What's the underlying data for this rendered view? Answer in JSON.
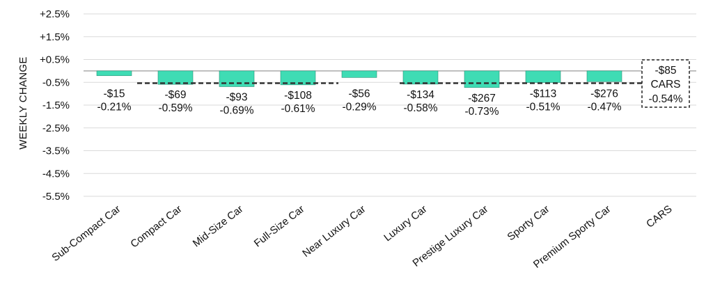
{
  "chart_data": {
    "type": "bar",
    "ylabel": "WEEKLY CHANGE",
    "xlabel": "",
    "ylim": [
      -5.5,
      2.5
    ],
    "ytick_values": [
      2.5,
      1.5,
      0.5,
      -0.5,
      -1.5,
      -2.5,
      -3.5,
      -4.5,
      -5.5
    ],
    "ytick_labels": [
      "+2.5%",
      "+1.5%",
      "+0.5%",
      "-0.5%",
      "-1.5%",
      "-2.5%",
      "-3.5%",
      "-4.5%",
      "-5.5%"
    ],
    "categories": [
      "Sub-Compact Car",
      "Compact Car",
      "Mid-Size Car",
      "Full-Size Car",
      "Near Luxury Car",
      "Luxury Car",
      "Prestige Luxury Car",
      "Sporty Car",
      "Premium Sporty Car",
      "CARS"
    ],
    "values": [
      -0.21,
      -0.59,
      -0.69,
      -0.61,
      -0.29,
      -0.58,
      -0.73,
      -0.51,
      -0.47,
      -0.54
    ],
    "dollar_labels": [
      "-$15",
      "-$69",
      "-$93",
      "-$108",
      "-$56",
      "-$134",
      "-$267",
      "-$113",
      "-$276",
      "-$85"
    ],
    "pct_labels": [
      "-0.21%",
      "-0.59%",
      "-0.69%",
      "-0.61%",
      "-0.29%",
      "-0.58%",
      "-0.73%",
      "-0.51%",
      "-0.47%",
      "-0.54%"
    ],
    "summary_box": {
      "dollar": "-$85",
      "label": "CARS",
      "pct": "-0.54%"
    },
    "reference_line": -0.54,
    "grid": true,
    "bar_color": "#3fdcb4",
    "bar_edge_color": "#2a8f75",
    "grid_color": "#d9d9d9"
  }
}
